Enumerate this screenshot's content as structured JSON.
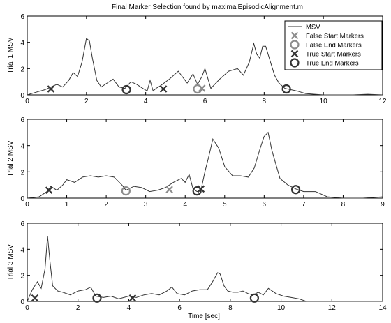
{
  "title": "Final Marker Selection found by maximalEpisodicAlignment.m",
  "xlabel": "Time [sec]",
  "legend": {
    "placement": "top-right",
    "entries": [
      {
        "key": "msv",
        "label": "MSV"
      },
      {
        "key": "false_start",
        "label": "False Start Markers"
      },
      {
        "key": "false_end",
        "label": "False End Markers"
      },
      {
        "key": "true_start",
        "label": "True Start Markers"
      },
      {
        "key": "true_end",
        "label": "True End Markers"
      }
    ]
  },
  "colors": {
    "msv": "#333333",
    "false_marker": "#8c8c8c",
    "true_marker": "#333333"
  },
  "chart_data": [
    {
      "type": "line",
      "ylabel": "Trial 1 MSV",
      "xlim": [
        0,
        12
      ],
      "ylim": [
        0,
        6
      ],
      "xticks": [
        0,
        2,
        4,
        6,
        8,
        10,
        12
      ],
      "yticks": [
        0,
        2,
        4,
        6
      ],
      "grid": false,
      "series": [
        {
          "name": "MSV",
          "x": [
            0,
            0.3,
            0.6,
            0.8,
            1.0,
            1.2,
            1.4,
            1.55,
            1.7,
            1.85,
            2.0,
            2.1,
            2.2,
            2.35,
            2.5,
            2.7,
            2.9,
            3.1,
            3.3,
            3.5,
            3.7,
            3.9,
            4.05,
            4.15,
            4.25,
            4.35,
            4.5,
            4.8,
            5.1,
            5.4,
            5.6,
            5.75,
            5.9,
            6.0,
            6.2,
            6.5,
            6.8,
            7.1,
            7.3,
            7.5,
            7.65,
            7.75,
            7.85,
            7.95,
            8.05,
            8.2,
            8.35,
            8.5,
            8.7,
            8.9,
            9.1,
            9.4,
            9.7,
            10.0,
            10.5,
            11.0,
            11.5,
            12.0
          ],
          "values": [
            0.0,
            0.2,
            0.4,
            0.6,
            0.8,
            0.6,
            1.1,
            1.7,
            1.4,
            2.5,
            4.3,
            4.1,
            2.8,
            1.1,
            0.6,
            0.9,
            1.2,
            0.6,
            0.5,
            1.0,
            0.8,
            0.5,
            0.3,
            1.1,
            0.3,
            0.5,
            0.7,
            1.2,
            1.8,
            0.9,
            1.6,
            0.8,
            1.4,
            2.0,
            0.5,
            1.2,
            1.8,
            2.0,
            1.5,
            2.5,
            3.9,
            3.1,
            2.8,
            3.7,
            3.7,
            2.6,
            1.5,
            0.9,
            0.5,
            0.4,
            0.3,
            0.1,
            0.05,
            0.0,
            0.0,
            0.0,
            0.05,
            0.0
          ]
        }
      ],
      "markers": {
        "false_start": [
          {
            "x": 5.9,
            "y": 0.5
          }
        ],
        "false_end": [
          {
            "x": 5.75,
            "y": 0.45
          }
        ],
        "true_start": [
          {
            "x": 0.8,
            "y": 0.45
          },
          {
            "x": 4.6,
            "y": 0.45
          }
        ],
        "true_end": [
          {
            "x": 3.35,
            "y": 0.4
          },
          {
            "x": 8.75,
            "y": 0.45
          }
        ]
      }
    },
    {
      "type": "line",
      "ylabel": "Trial 2 MSV",
      "xlim": [
        0,
        9
      ],
      "ylim": [
        0,
        6
      ],
      "xticks": [
        0,
        1,
        2,
        3,
        4,
        5,
        6,
        7,
        8,
        9
      ],
      "yticks": [
        0,
        2,
        4,
        6
      ],
      "grid": false,
      "series": [
        {
          "name": "MSV",
          "x": [
            0,
            0.3,
            0.5,
            0.6,
            0.75,
            0.9,
            1.0,
            1.2,
            1.4,
            1.6,
            1.8,
            2.0,
            2.2,
            2.4,
            2.5,
            2.7,
            2.9,
            3.1,
            3.3,
            3.5,
            3.7,
            3.9,
            4.0,
            4.1,
            4.2,
            4.3,
            4.4,
            4.5,
            4.6,
            4.7,
            4.85,
            5.0,
            5.2,
            5.4,
            5.6,
            5.75,
            5.9,
            6.0,
            6.1,
            6.2,
            6.4,
            6.6,
            6.8,
            7.0,
            7.3,
            7.6,
            8.0,
            8.5,
            9.0
          ],
          "values": [
            0.0,
            0.1,
            0.5,
            0.9,
            0.6,
            1.0,
            1.4,
            1.2,
            1.6,
            1.7,
            1.6,
            1.7,
            1.6,
            1.0,
            0.6,
            0.9,
            0.8,
            0.5,
            0.6,
            0.8,
            1.2,
            1.5,
            1.2,
            1.8,
            0.7,
            0.5,
            0.6,
            2.0,
            3.2,
            4.5,
            3.8,
            2.4,
            1.7,
            1.7,
            1.6,
            2.3,
            3.8,
            4.7,
            5.0,
            3.6,
            1.5,
            1.0,
            0.7,
            0.5,
            0.5,
            0.1,
            0.0,
            0.0,
            0.1
          ]
        }
      ],
      "markers": {
        "false_start": [
          {
            "x": 3.6,
            "y": 0.65
          }
        ],
        "false_end": [
          {
            "x": 2.5,
            "y": 0.55
          }
        ],
        "true_start": [
          {
            "x": 0.55,
            "y": 0.6
          },
          {
            "x": 4.4,
            "y": 0.7
          }
        ],
        "true_end": [
          {
            "x": 4.3,
            "y": 0.55
          },
          {
            "x": 6.8,
            "y": 0.65
          }
        ]
      }
    },
    {
      "type": "line",
      "ylabel": "Trial 3 MSV",
      "xlim": [
        0,
        14
      ],
      "ylim": [
        0,
        6
      ],
      "xticks": [
        0,
        2,
        4,
        6,
        8,
        10,
        12,
        14
      ],
      "yticks": [
        0,
        2,
        4,
        6
      ],
      "grid": false,
      "series": [
        {
          "name": "MSV",
          "x": [
            0,
            0.2,
            0.4,
            0.55,
            0.7,
            0.8,
            0.9,
            1.0,
            1.2,
            1.4,
            1.7,
            2.0,
            2.3,
            2.5,
            2.7,
            3.0,
            3.3,
            3.6,
            4.0,
            4.3,
            4.6,
            4.9,
            5.2,
            5.5,
            5.7,
            5.9,
            6.2,
            6.5,
            6.8,
            7.1,
            7.3,
            7.5,
            7.6,
            7.75,
            7.9,
            8.1,
            8.3,
            8.5,
            8.7,
            8.9,
            9.1,
            9.3,
            9.5,
            9.8,
            10.1,
            10.4,
            10.7,
            11.0,
            12.0,
            13.0,
            14.0
          ],
          "values": [
            0.0,
            0.9,
            1.5,
            1.0,
            2.5,
            5.0,
            3.0,
            1.2,
            0.8,
            0.7,
            0.5,
            0.8,
            0.9,
            1.1,
            0.4,
            0.3,
            0.4,
            0.2,
            0.4,
            0.3,
            0.5,
            0.6,
            0.5,
            0.8,
            1.1,
            0.6,
            0.5,
            0.8,
            0.9,
            0.9,
            1.5,
            2.2,
            2.1,
            1.2,
            0.8,
            0.7,
            0.7,
            0.8,
            0.6,
            0.5,
            0.7,
            0.5,
            1.0,
            0.6,
            0.4,
            0.3,
            0.2,
            0.0,
            0.0,
            0.0,
            0.0
          ]
        }
      ],
      "markers": {
        "false_start": [],
        "false_end": [],
        "true_start": [
          {
            "x": 0.3,
            "y": 0.25
          },
          {
            "x": 4.15,
            "y": 0.25
          }
        ],
        "true_end": [
          {
            "x": 2.75,
            "y": 0.25
          },
          {
            "x": 8.95,
            "y": 0.25
          }
        ]
      }
    }
  ]
}
